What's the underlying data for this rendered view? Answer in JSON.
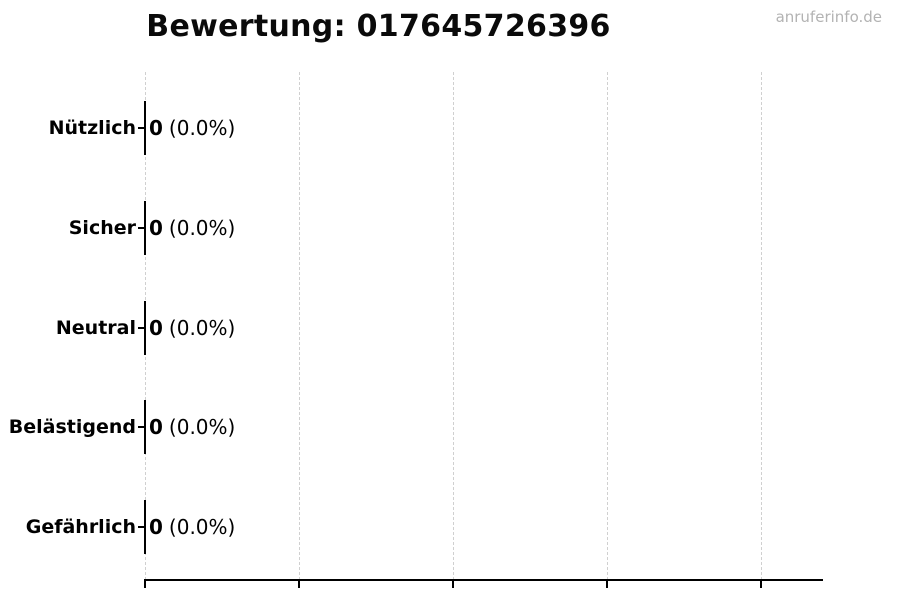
{
  "page": {
    "watermark": "anruferinfo.de"
  },
  "chart_data": {
    "type": "bar",
    "orientation": "horizontal",
    "title": "Bewertung: 017645726396",
    "categories": [
      "Nützlich",
      "Sicher",
      "Neutral",
      "Belästigend",
      "Gefährlich"
    ],
    "values": [
      0,
      0,
      0,
      0,
      0
    ],
    "percent_labels": [
      "(0.0%)",
      "(0.0%)",
      "(0.0%)",
      "(0.0%)",
      "(0.0%)"
    ],
    "percentages": [
      0.0,
      0.0,
      0.0,
      0.0,
      0.0
    ],
    "xlabel": "",
    "ylabel": "",
    "xlim": [
      0,
      1.1
    ],
    "x_gridline_values": [
      0,
      0.25,
      0.5,
      0.75,
      1.0
    ],
    "x_tick_labels_shown": false,
    "grid": "vertical-dashed",
    "legend": "none",
    "colors": {
      "bar_edge": "#000000",
      "gridline": "#d0d0d0",
      "axis": "#000000",
      "title_text": "#0a0a0a",
      "watermark_text": "#b3b3b3",
      "background": "#ffffff"
    }
  }
}
